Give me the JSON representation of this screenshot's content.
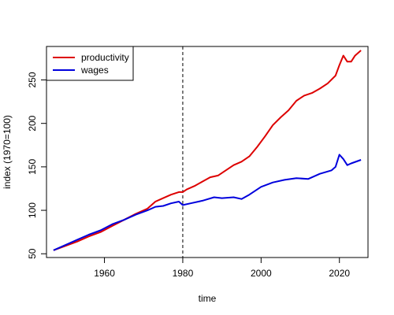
{
  "chart_data": {
    "type": "line",
    "title": "",
    "xlabel": "time",
    "ylabel": "index (1970=100)",
    "xlim": [
      1945.2,
      2027.3
    ],
    "ylim": [
      45.7,
      288.5
    ],
    "xticks": [
      1960,
      1980,
      2000,
      2020
    ],
    "yticks": [
      50,
      100,
      150,
      200,
      250
    ],
    "vline": 1980,
    "legend_position": "top-left",
    "series": [
      {
        "name": "productivity",
        "color": "#dd0000",
        "x": [
          1947,
          1950,
          1953,
          1956,
          1959,
          1962,
          1965,
          1968,
          1971,
          1973,
          1975,
          1977,
          1979,
          1980,
          1981,
          1983,
          1985,
          1987,
          1989,
          1991,
          1993,
          1995,
          1997,
          1999,
          2001,
          2003,
          2005,
          2007,
          2009,
          2011,
          2013,
          2015,
          2017,
          2019,
          2020,
          2021,
          2022,
          2023,
          2024,
          2025.5
        ],
        "y": [
          54,
          59,
          64,
          70,
          75,
          82,
          89,
          96,
          102,
          110,
          114,
          118,
          121,
          121,
          124,
          128,
          133,
          138,
          140,
          146,
          152,
          156,
          162,
          173,
          185,
          198,
          207,
          215,
          226,
          232,
          235,
          240,
          246,
          255,
          267,
          278,
          271,
          271,
          278,
          284
        ]
      },
      {
        "name": "wages",
        "color": "#0000dd",
        "x": [
          1947,
          1950,
          1953,
          1956,
          1959,
          1962,
          1965,
          1968,
          1971,
          1973,
          1975,
          1977,
          1979,
          1980,
          1982,
          1985,
          1988,
          1990,
          1993,
          1995,
          1997,
          2000,
          2003,
          2006,
          2009,
          2012,
          2015,
          2018,
          2019,
          2020,
          2021,
          2022,
          2023,
          2025.5
        ],
        "y": [
          54,
          60,
          66,
          72,
          77,
          84,
          89,
          95,
          100,
          104,
          105,
          108,
          110,
          106,
          108,
          111,
          115,
          114,
          115,
          113,
          118,
          127,
          132,
          135,
          137,
          136,
          142,
          146,
          150,
          164,
          159,
          152,
          154,
          158
        ]
      }
    ]
  }
}
